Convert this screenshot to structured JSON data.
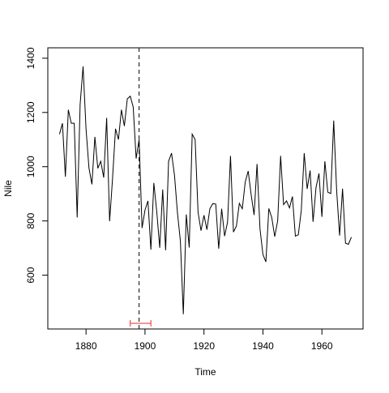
{
  "chart_data": {
    "type": "line",
    "title": "",
    "xlabel": "Time",
    "ylabel": "Nile",
    "xlim": [
      1871,
      1970
    ],
    "ylim": [
      440,
      1400
    ],
    "x_ticks": [
      1880,
      1900,
      1920,
      1940,
      1960
    ],
    "y_ticks": [
      600,
      800,
      1000,
      1200,
      1400
    ],
    "grid": false,
    "x_start": 1871,
    "series": [
      {
        "values": [
          1120,
          1160,
          963,
          1210,
          1160,
          1160,
          813,
          1230,
          1370,
          1140,
          995,
          935,
          1110,
          994,
          1020,
          960,
          1180,
          799,
          958,
          1140,
          1100,
          1210,
          1150,
          1250,
          1260,
          1220,
          1030,
          1100,
          774,
          840,
          874,
          694,
          940,
          833,
          701,
          916,
          692,
          1020,
          1050,
          969,
          831,
          726,
          456,
          824,
          702,
          1120,
          1100,
          832,
          764,
          821,
          768,
          845,
          864,
          862,
          698,
          845,
          744,
          796,
          1040,
          759,
          781,
          865,
          845,
          944,
          984,
          897,
          822,
          1010,
          771,
          676,
          649,
          846,
          812,
          742,
          801,
          1040,
          860,
          874,
          848,
          890,
          744,
          749,
          838,
          1050,
          918,
          986,
          797,
          923,
          975,
          815,
          1020,
          906,
          901,
          1170,
          912,
          746,
          919,
          718,
          714,
          740
        ]
      }
    ],
    "changepoint": {
      "year": 1898,
      "interval": [
        1895,
        1902
      ]
    }
  }
}
